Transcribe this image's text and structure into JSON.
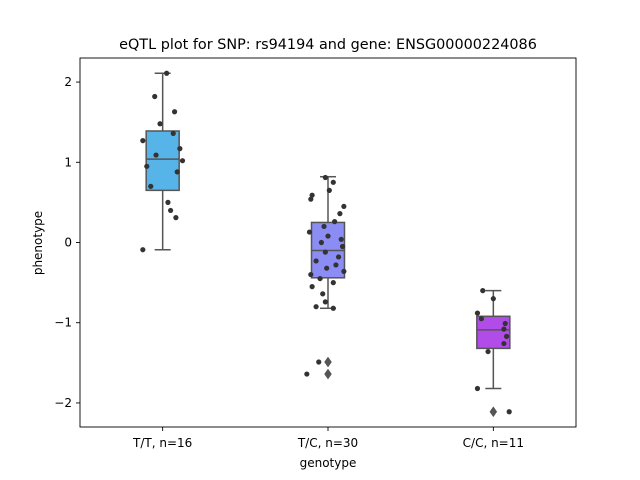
{
  "chart_data": {
    "type": "box",
    "title": "eQTL plot for SNP: rs94194 and gene: ENSG00000224086",
    "xlabel": "genotype",
    "ylabel": "phenotype",
    "ylim": [
      -2.3,
      2.3
    ],
    "yticks": [
      2,
      1,
      0,
      -1,
      -2
    ],
    "ytick_labels": [
      "2",
      "1",
      "0",
      "−1",
      "−2"
    ],
    "grid": false,
    "categories": [
      "T/T, n=16",
      "T/C, n=30",
      "C/C, n=11"
    ],
    "box_colors": [
      "#56b4e9",
      "#8c8cf5",
      "#b24ce8"
    ],
    "boxes": [
      {
        "category": "T/T, n=16",
        "whisker_low": -0.09,
        "q1": 0.65,
        "median": 1.04,
        "q3": 1.39,
        "whisker_high": 2.11,
        "outliers": []
      },
      {
        "category": "T/C, n=30",
        "whisker_low": -0.82,
        "q1": -0.44,
        "median": -0.1,
        "q3": 0.25,
        "whisker_high": 0.82,
        "outliers": [
          -1.49,
          -1.64
        ]
      },
      {
        "category": "C/C, n=11",
        "whisker_low": -1.82,
        "q1": -1.32,
        "median": -1.09,
        "q3": -0.92,
        "whisker_high": -0.6,
        "outliers": [
          -2.11
        ]
      }
    ],
    "points": [
      [
        {
          "dx": 0.03,
          "y": 2.11
        },
        {
          "dx": -0.06,
          "y": 1.82
        },
        {
          "dx": 0.09,
          "y": 1.63
        },
        {
          "dx": -0.02,
          "y": 1.48
        },
        {
          "dx": 0.08,
          "y": 1.36
        },
        {
          "dx": -0.15,
          "y": 1.27
        },
        {
          "dx": 0.13,
          "y": 1.17
        },
        {
          "dx": -0.05,
          "y": 1.09
        },
        {
          "dx": 0.15,
          "y": 1.02
        },
        {
          "dx": -0.12,
          "y": 0.95
        },
        {
          "dx": 0.11,
          "y": 0.88
        },
        {
          "dx": -0.09,
          "y": 0.7
        },
        {
          "dx": 0.04,
          "y": 0.5
        },
        {
          "dx": 0.06,
          "y": 0.4
        },
        {
          "dx": 0.1,
          "y": 0.31
        },
        {
          "dx": -0.15,
          "y": -0.09
        }
      ],
      [
        {
          "dx": -0.02,
          "y": 0.81
        },
        {
          "dx": 0.04,
          "y": 0.75
        },
        {
          "dx": 0.01,
          "y": 0.65
        },
        {
          "dx": -0.12,
          "y": 0.59
        },
        {
          "dx": -0.13,
          "y": 0.54
        },
        {
          "dx": 0.12,
          "y": 0.45
        },
        {
          "dx": 0.09,
          "y": 0.36
        },
        {
          "dx": 0.05,
          "y": 0.26
        },
        {
          "dx": -0.03,
          "y": 0.2
        },
        {
          "dx": -0.14,
          "y": 0.13
        },
        {
          "dx": 0.0,
          "y": 0.08
        },
        {
          "dx": 0.1,
          "y": 0.04
        },
        {
          "dx": -0.05,
          "y": 0.0
        },
        {
          "dx": 0.11,
          "y": -0.05
        },
        {
          "dx": -0.02,
          "y": -0.12
        },
        {
          "dx": 0.08,
          "y": -0.18
        },
        {
          "dx": -0.09,
          "y": -0.23
        },
        {
          "dx": 0.06,
          "y": -0.28
        },
        {
          "dx": -0.01,
          "y": -0.32
        },
        {
          "dx": 0.12,
          "y": -0.36
        },
        {
          "dx": -0.13,
          "y": -0.4
        },
        {
          "dx": -0.06,
          "y": -0.45
        },
        {
          "dx": 0.04,
          "y": -0.5
        },
        {
          "dx": -0.12,
          "y": -0.55
        },
        {
          "dx": -0.04,
          "y": -0.64
        },
        {
          "dx": -0.02,
          "y": -0.74
        },
        {
          "dx": -0.09,
          "y": -0.8
        },
        {
          "dx": 0.04,
          "y": -0.82
        },
        {
          "dx": -0.07,
          "y": -1.49
        },
        {
          "dx": -0.16,
          "y": -1.64
        }
      ],
      [
        {
          "dx": -0.08,
          "y": -0.6
        },
        {
          "dx": 0.0,
          "y": -0.7
        },
        {
          "dx": -0.12,
          "y": -0.88
        },
        {
          "dx": -0.09,
          "y": -0.95
        },
        {
          "dx": 0.09,
          "y": -1.01
        },
        {
          "dx": 0.08,
          "y": -1.08
        },
        {
          "dx": 0.1,
          "y": -1.17
        },
        {
          "dx": 0.08,
          "y": -1.26
        },
        {
          "dx": -0.04,
          "y": -1.36
        },
        {
          "dx": -0.12,
          "y": -1.82
        },
        {
          "dx": 0.12,
          "y": -2.11
        }
      ]
    ]
  }
}
